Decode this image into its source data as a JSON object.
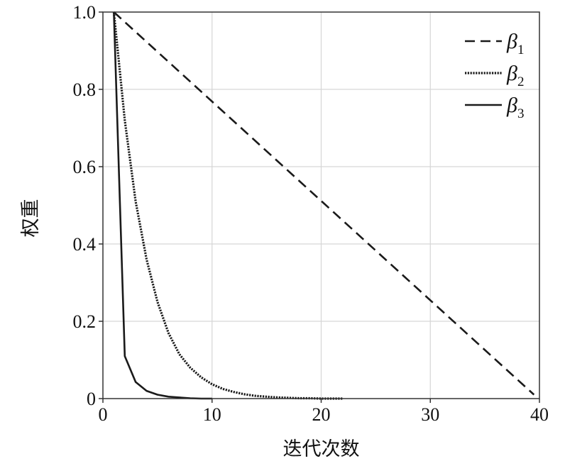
{
  "chart_data": {
    "type": "line",
    "xlabel": "迭代次数",
    "ylabel": "权重",
    "xlim": [
      0,
      40
    ],
    "ylim": [
      0,
      1.0
    ],
    "xticks": [
      0,
      10,
      20,
      30,
      40
    ],
    "xtick_labels": [
      "0",
      "10",
      "20",
      "30",
      "40"
    ],
    "yticks": [
      0,
      0.2,
      0.4,
      0.6,
      0.8,
      1.0
    ],
    "ytick_labels": [
      "0",
      "0.2",
      "0.4",
      "0.6",
      "0.8",
      "1.0"
    ],
    "grid": true,
    "legend_position": "top-right",
    "series": [
      {
        "name": "β1",
        "legend_symbol": "β",
        "legend_subscript": "1",
        "line_style": "dashed",
        "color": "#1a1a1a",
        "x": [
          1,
          39.5
        ],
        "y": [
          1.0,
          0.01
        ]
      },
      {
        "name": "β2",
        "legend_symbol": "β",
        "legend_subscript": "2",
        "line_style": "dotted",
        "color": "#1a1a1a",
        "x": [
          1,
          2,
          3,
          4,
          5,
          6,
          7,
          8,
          9,
          10,
          11,
          12,
          13,
          14,
          15,
          16,
          17,
          18,
          19,
          20,
          21,
          22
        ],
        "y": [
          1.0,
          0.72,
          0.51,
          0.36,
          0.25,
          0.17,
          0.115,
          0.08,
          0.055,
          0.037,
          0.025,
          0.017,
          0.011,
          0.007,
          0.005,
          0.003,
          0.002,
          0.001,
          0.001,
          0.0,
          0.0,
          0.0
        ]
      },
      {
        "name": "β3",
        "legend_symbol": "β",
        "legend_subscript": "3",
        "line_style": "solid",
        "color": "#1a1a1a",
        "x": [
          1,
          2,
          3,
          4,
          5,
          6,
          7,
          8,
          9,
          10
        ],
        "y": [
          1.0,
          0.11,
          0.043,
          0.02,
          0.01,
          0.005,
          0.003,
          0.001,
          0.0,
          0.0
        ]
      }
    ]
  }
}
